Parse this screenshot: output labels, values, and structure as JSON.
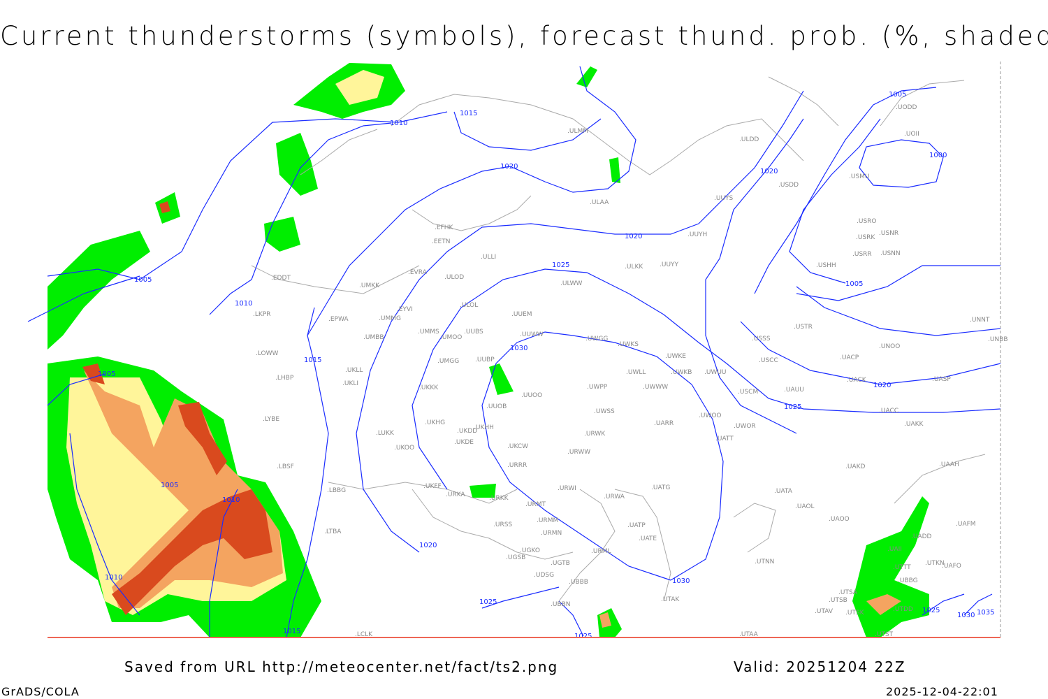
{
  "title": "Current thunderstorms (symbols), forecast thund. prob. (%, shaded)",
  "footer": {
    "source": "Saved from URL http://meteocenter.net/fact/ts2.png",
    "valid": "Valid: 20251204 22Z",
    "software": "GrADS/COLA",
    "timestamp": "2025-12-04-22:01"
  },
  "colors": {
    "isobar": "#1a2cff",
    "coastline": "#aaaaaa",
    "prob_low": "#00ee00",
    "prob_mid": "#fff59a",
    "prob_high": "#f4a460",
    "prob_max": "#d94a1e"
  },
  "isobar_labels": [
    "1000",
    "1005",
    "1010",
    "1015",
    "1020",
    "1025",
    "1030",
    "1035"
  ],
  "stations": [
    "ULMM",
    "ULDD",
    "UODD",
    "UOII",
    "USDD",
    "USMU",
    "ULAA",
    "UUYS",
    "USRO",
    "USRK",
    "USNR",
    "UUYH",
    "USRR",
    "USNN",
    "USHH",
    "EFHK",
    "EETN",
    "ULLI",
    "EVRA",
    "ULOD",
    "ULKK",
    "UUYY",
    "EDDT",
    "UMKK",
    "ULWW",
    "ULOL",
    "UUEM",
    "EYVI",
    "UMMG",
    "EPWA",
    "LKPR",
    "UMMS",
    "UUBS",
    "UMOO",
    "UUWW",
    "UWGG",
    "USSS",
    "UNOO",
    "USTR",
    "UNNT",
    "UNBB",
    "UWKS",
    "UMBB",
    "LOWW",
    "UWKE",
    "UMGG",
    "UUBP",
    "USCC",
    "UACP",
    "UKLL",
    "UWKB",
    "UWUU",
    "UWLL",
    "LHBP",
    "UKLI",
    "UACK",
    "UASP",
    "UKKK",
    "UWWW",
    "UWPP",
    "USCM",
    "UAUU",
    "UUOO",
    "UUOB",
    "UACC",
    "UWSS",
    "UWOO",
    "UARR",
    "UWOR",
    "UAKK",
    "LYBE",
    "UKHG",
    "UKDD",
    "UKHH",
    "LUKK",
    "URWK",
    "UATT",
    "UKOO",
    "UKDE",
    "UKCW",
    "URWW",
    "LBSF",
    "URRR",
    "UAKD",
    "UAAH",
    "UKFF",
    "UATG",
    "LBBG",
    "URWI",
    "UATA",
    "URKA",
    "URKK",
    "URWA",
    "URMT",
    "UAOL",
    "URSS",
    "URMM",
    "UATP",
    "UAOO",
    "UAFM",
    "URMN",
    "LTBA",
    "UATE",
    "UADD",
    "UGKO",
    "URML",
    "UGSB",
    "UAII",
    "UGTB",
    "UTNN",
    "UTKN",
    "UAFO",
    "UTTT",
    "UDSG",
    "UBBG",
    "UBBB",
    "UTSA",
    "UTAK",
    "UTSB",
    "UBBN",
    "UTAV",
    "UTSK",
    "UTDD",
    "LCLK",
    "UTAA",
    "UTST"
  ]
}
